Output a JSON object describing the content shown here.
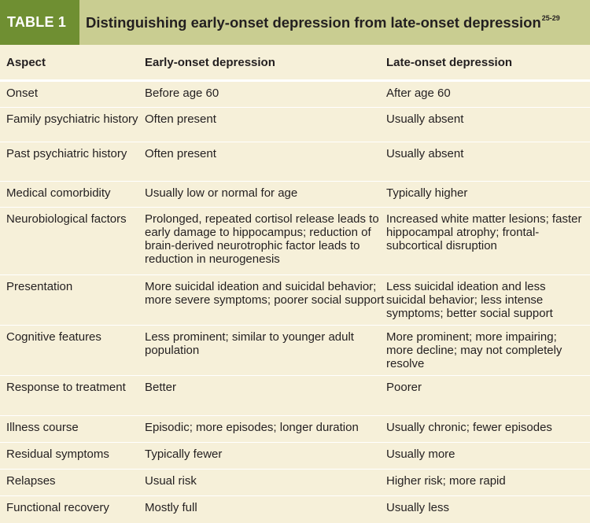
{
  "title": {
    "label": "TABLE 1",
    "text": "Distinguishing early-onset depression from late-onset depression",
    "ref": "25-29"
  },
  "columns": [
    "Aspect",
    "Early-onset depression",
    "Late-onset depression"
  ],
  "rows": [
    [
      "Onset",
      "Before age 60",
      "After age 60"
    ],
    [
      "Family psychiatric history",
      "Often present",
      "Usually absent"
    ],
    [
      "Past psychiatric history",
      "Often present",
      "Usually absent"
    ],
    [
      "Medical comorbidity",
      "Usually low or normal for age",
      "Typically higher"
    ],
    [
      "Neurobiological factors",
      "Prolonged, repeated cortisol release leads to early damage to hippocampus; reduction of brain-derived neurotrophic factor leads to reduction in neurogenesis",
      "Increased white matter lesions; faster hippocampal atrophy; frontal-subcortical disruption"
    ],
    [
      "Presentation",
      "More suicidal ideation and suicidal behavior; more severe symptoms; poorer social support",
      "Less suicidal ideation and less suicidal behavior; less intense symptoms; better social support"
    ],
    [
      "Cognitive features",
      "Less prominent; similar to younger adult population",
      "More prominent; more impairing; more decline; may not completely resolve"
    ],
    [
      "Response to treatment",
      "Better",
      "Poorer"
    ],
    [
      "Illness course",
      "Episodic; more episodes; longer duration",
      "Usually chronic; fewer episodes"
    ],
    [
      "Residual symptoms",
      "Typically fewer",
      "Usually more"
    ],
    [
      "Relapses",
      "Usual risk",
      "Higher risk; more rapid"
    ],
    [
      "Functional recovery",
      "Mostly full",
      "Usually less"
    ]
  ]
}
